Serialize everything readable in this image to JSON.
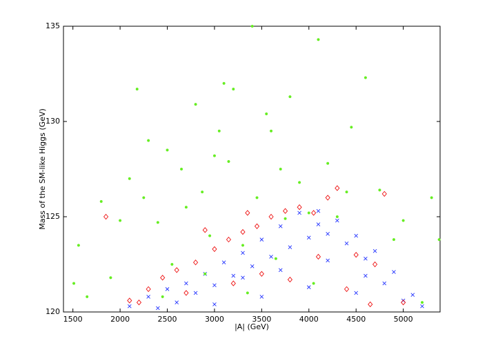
{
  "chart_data": {
    "type": "scatter",
    "x_label": "|A| (GeV)",
    "y_label": "Mass of the SM-like Higgs (GeV)",
    "xlim": [
      1400,
      5390
    ],
    "ylim": [
      120,
      135
    ],
    "xticks": [
      1500,
      2000,
      2500,
      3000,
      3500,
      4000,
      4500,
      5000
    ],
    "yticks": [
      120,
      125,
      130,
      135
    ],
    "series": [
      {
        "color": "#2233ff",
        "marker": "x",
        "x": [
          2100,
          2300,
          2500,
          2700,
          2900,
          3100,
          3300,
          3500,
          3700,
          3900,
          4100,
          4300,
          4500,
          4700,
          4900,
          5100,
          2600,
          2800,
          3000,
          3200,
          3400,
          3600,
          3800,
          4000,
          4200,
          4400,
          4600,
          4800,
          5000,
          3000,
          3500,
          4000,
          4500,
          2400,
          3300,
          3700,
          4200,
          4600,
          5200,
          4100
        ],
        "values": [
          120.3,
          120.8,
          121.2,
          121.5,
          122.0,
          122.6,
          123.1,
          123.8,
          124.5,
          125.2,
          125.3,
          124.8,
          124.0,
          123.2,
          122.1,
          120.9,
          120.5,
          121.0,
          121.4,
          121.9,
          122.4,
          122.9,
          123.4,
          123.9,
          124.1,
          123.6,
          122.8,
          121.5,
          120.6,
          120.4,
          120.8,
          121.3,
          121.0,
          120.2,
          121.8,
          122.2,
          122.7,
          121.9,
          120.3,
          124.6
        ]
      },
      {
        "color": "#ee1111",
        "marker": "diamond",
        "x": [
          1850,
          2100,
          2300,
          2450,
          2600,
          2800,
          3000,
          3150,
          3300,
          3450,
          3600,
          3750,
          3900,
          4050,
          4200,
          4300,
          4500,
          4700,
          4800,
          5000,
          2200,
          2700,
          3200,
          3500,
          3800,
          4100,
          4400,
          4650,
          2900,
          3350
        ],
        "values": [
          125.0,
          120.6,
          121.2,
          121.8,
          122.2,
          122.6,
          123.3,
          123.8,
          124.2,
          124.5,
          125.0,
          125.3,
          125.5,
          125.2,
          126.0,
          126.5,
          123.0,
          122.5,
          126.2,
          120.5,
          120.5,
          121.0,
          121.5,
          122.0,
          121.7,
          122.9,
          121.2,
          120.4,
          124.3,
          125.2
        ]
      },
      {
        "color": "#66ee22",
        "marker": "dot",
        "x": [
          1510,
          1560,
          1650,
          1800,
          1900,
          2000,
          2100,
          2180,
          2250,
          2300,
          2400,
          2500,
          2550,
          2650,
          2700,
          2800,
          2870,
          2900,
          3000,
          3050,
          3100,
          3150,
          3200,
          3300,
          3400,
          3450,
          3550,
          3600,
          3700,
          3800,
          3900,
          4000,
          4100,
          4200,
          4300,
          4400,
          4450,
          4600,
          4750,
          4900,
          5000,
          5200,
          5300,
          5380,
          3350,
          2950,
          3650,
          4050,
          2450,
          3750
        ],
        "values": [
          121.5,
          123.5,
          120.8,
          125.8,
          121.8,
          124.8,
          127.0,
          131.7,
          126.0,
          129.0,
          124.7,
          128.5,
          122.5,
          127.5,
          125.5,
          130.9,
          126.3,
          122.0,
          128.2,
          129.5,
          132.0,
          127.9,
          131.7,
          123.5,
          135.0,
          126.0,
          130.4,
          129.5,
          127.5,
          131.3,
          126.8,
          125.2,
          134.3,
          127.8,
          125.0,
          126.3,
          129.7,
          132.3,
          126.4,
          123.8,
          124.8,
          120.5,
          126.0,
          123.8,
          121.0,
          124.0,
          122.8,
          121.5,
          120.8,
          124.9
        ]
      }
    ]
  }
}
